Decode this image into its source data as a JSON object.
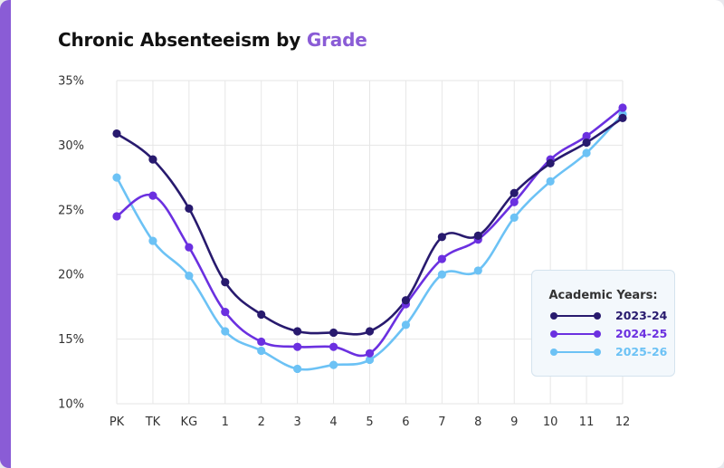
{
  "header": {
    "title_main": "Chronic Absenteeism by",
    "title_accent": "Grade"
  },
  "legend": {
    "title": "Academic Years:"
  },
  "colors": {
    "accent": "#8a5cd6",
    "grid": "#e6e6e6",
    "axis_text": "#333333"
  },
  "chart_data": {
    "type": "line",
    "title": "Chronic Absenteeism by Grade",
    "xlabel": "",
    "ylabel": "",
    "categories": [
      "PK",
      "TK",
      "KG",
      "1",
      "2",
      "3",
      "4",
      "5",
      "6",
      "7",
      "8",
      "9",
      "10",
      "11",
      "12"
    ],
    "ylim": [
      10,
      35
    ],
    "yticks": [
      "10%",
      "15%",
      "20%",
      "25%",
      "30%",
      "35%"
    ],
    "ytick_values": [
      10,
      15,
      20,
      25,
      30,
      35
    ],
    "grid": true,
    "legend_position": "bottom-right",
    "series": [
      {
        "name": "2023-24",
        "color": "#281a6e",
        "values": [
          30.9,
          28.9,
          25.1,
          19.4,
          16.9,
          15.6,
          15.5,
          15.6,
          18.0,
          22.9,
          23.0,
          26.3,
          28.6,
          30.2,
          32.1
        ]
      },
      {
        "name": "2024-25",
        "color": "#6b30e0",
        "values": [
          24.5,
          26.1,
          22.1,
          17.1,
          14.8,
          14.4,
          14.4,
          13.9,
          17.7,
          21.2,
          22.7,
          25.6,
          28.9,
          30.7,
          32.9
        ]
      },
      {
        "name": "2025-26",
        "color": "#6cc2f5",
        "values": [
          27.5,
          22.6,
          19.9,
          15.6,
          14.1,
          12.7,
          13.0,
          13.4,
          16.1,
          20.0,
          20.3,
          24.4,
          27.2,
          29.4,
          32.4
        ]
      }
    ]
  }
}
